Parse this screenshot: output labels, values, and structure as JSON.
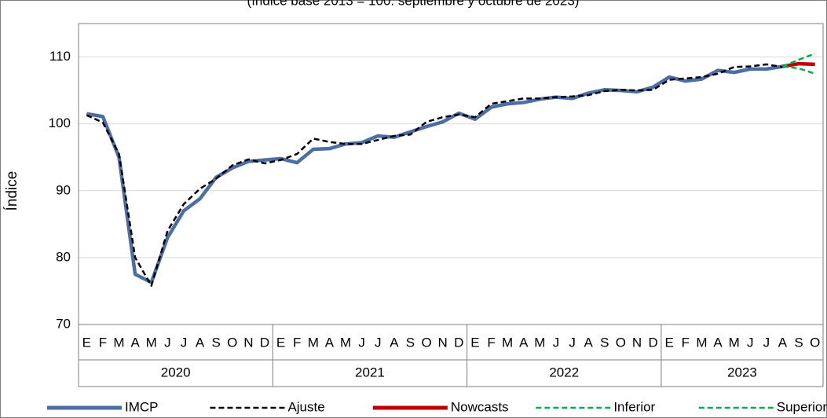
{
  "chart_data": {
    "type": "line",
    "subtitle": "(índice base 2013 = 100. septiembre y octubre de 2023)",
    "y_label": "Índice",
    "categories": [
      "E",
      "F",
      "M",
      "A",
      "M",
      "J",
      "J",
      "A",
      "S",
      "O",
      "N",
      "D",
      "E",
      "F",
      "M",
      "A",
      "M",
      "J",
      "J",
      "A",
      "S",
      "O",
      "N",
      "D",
      "E",
      "F",
      "M",
      "A",
      "M",
      "J",
      "J",
      "A",
      "S",
      "O",
      "N",
      "D",
      "E",
      "F",
      "M",
      "A",
      "M",
      "J",
      "J",
      "A",
      "S",
      "O"
    ],
    "years": [
      "2020",
      "2021",
      "2022",
      "2023"
    ],
    "ylim": [
      70,
      115
    ],
    "yticks": [
      70,
      80,
      90,
      100,
      110
    ],
    "grid": true,
    "legend": "bottom",
    "series": [
      {
        "name": "IMCP",
        "color": "#4a6ea5",
        "dashed": false,
        "values": [
          101.5,
          101.1,
          95,
          77.5,
          76.3,
          83,
          87,
          88.8,
          92,
          93.4,
          94.4,
          94.6,
          94.8,
          94.2,
          96.2,
          96.3,
          97,
          97.2,
          98.2,
          98,
          98.8,
          99.6,
          100.3,
          101.6,
          100.7,
          102.5,
          103,
          103.2,
          103.7,
          104,
          103.8,
          104.6,
          105.1,
          105,
          104.8,
          105.5,
          107,
          106.4,
          106.7,
          108,
          107.7,
          108.2,
          108.2,
          108.6,
          null,
          null
        ]
      },
      {
        "name": "Ajuste",
        "color": "#000000",
        "dashed": true,
        "values": [
          101.3,
          100.2,
          95.5,
          80,
          75.8,
          84,
          88,
          90.3,
          91.8,
          93.8,
          94.7,
          94.1,
          94.6,
          95.5,
          97.8,
          97.3,
          97,
          97,
          97.6,
          98.2,
          98.4,
          100.3,
          101,
          101.4,
          101,
          103,
          103.4,
          103.8,
          103.8,
          104,
          104.1,
          104.3,
          104.9,
          105.1,
          105,
          105.1,
          106.6,
          106.8,
          107,
          107.5,
          108.5,
          108.6,
          108.9,
          108.5,
          null,
          null
        ]
      },
      {
        "name": "Nowcasts",
        "color": "#c00000",
        "dashed": false,
        "values": [
          null,
          null,
          null,
          null,
          null,
          null,
          null,
          null,
          null,
          null,
          null,
          null,
          null,
          null,
          null,
          null,
          null,
          null,
          null,
          null,
          null,
          null,
          null,
          null,
          null,
          null,
          null,
          null,
          null,
          null,
          null,
          null,
          null,
          null,
          null,
          null,
          null,
          null,
          null,
          null,
          null,
          null,
          null,
          108.6,
          109,
          108.9
        ]
      },
      {
        "name": "Inferior",
        "color": "#00b050",
        "dashed": true,
        "values": [
          null,
          null,
          null,
          null,
          null,
          null,
          null,
          null,
          null,
          null,
          null,
          null,
          null,
          null,
          null,
          null,
          null,
          null,
          null,
          null,
          null,
          null,
          null,
          null,
          null,
          null,
          null,
          null,
          null,
          null,
          null,
          null,
          null,
          null,
          null,
          null,
          null,
          null,
          null,
          null,
          null,
          null,
          null,
          108.6,
          108.3,
          107.5
        ]
      },
      {
        "name": "Superior",
        "color": "#00b050",
        "dashed": true,
        "values": [
          null,
          null,
          null,
          null,
          null,
          null,
          null,
          null,
          null,
          null,
          null,
          null,
          null,
          null,
          null,
          null,
          null,
          null,
          null,
          null,
          null,
          null,
          null,
          null,
          null,
          null,
          null,
          null,
          null,
          null,
          null,
          null,
          null,
          null,
          null,
          null,
          null,
          null,
          null,
          null,
          null,
          null,
          null,
          108.6,
          109.6,
          110.5
        ]
      }
    ]
  }
}
